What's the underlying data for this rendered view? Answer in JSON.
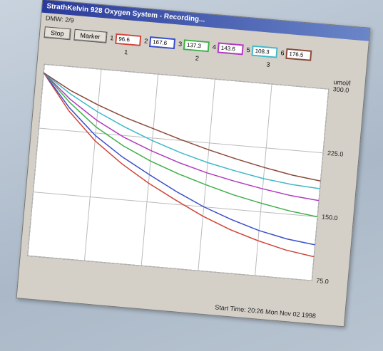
{
  "window": {
    "title": "StrathKelvin 928 Oxygen System - Recording...",
    "status": "DMW: 2/9",
    "buttons": [
      "Stop",
      "Marker"
    ],
    "markers": [
      "1",
      "2",
      "3"
    ],
    "start_time": "Start Time:  20:26 Mon Nov 02 1998"
  },
  "chart_data": {
    "type": "line",
    "y_label": "umol/l",
    "x": [
      0,
      1,
      2,
      3,
      4,
      5,
      6,
      7,
      8,
      9,
      10
    ],
    "xlim": [
      0,
      10
    ],
    "xticks": [
      0,
      2,
      4,
      6,
      8,
      10
    ],
    "ylim": [
      75,
      300
    ],
    "yticks": [
      {
        "value": 300,
        "label": "300.0"
      },
      {
        "value": 225,
        "label": "225.0"
      },
      {
        "value": 150,
        "label": "150.0"
      },
      {
        "value": 75,
        "label": "75.0"
      }
    ],
    "grid": true,
    "series": [
      {
        "name": "1",
        "readout": "96.6",
        "color": "#d0463a",
        "values": [
          290,
          248,
          216,
          192,
          172,
          155,
          139,
          126,
          116,
          108,
          103
        ]
      },
      {
        "name": "2",
        "readout": "167.6",
        "color": "#3a4fc8",
        "values": [
          290,
          252,
          222,
          200,
          182,
          165,
          150,
          138,
          128,
          121,
          117
        ]
      },
      {
        "name": "3",
        "readout": "137.3",
        "color": "#3fb04a",
        "values": [
          290,
          258,
          232,
          213,
          198,
          186,
          176,
          167,
          160,
          154,
          150
        ]
      },
      {
        "name": "4",
        "readout": "143.6",
        "color": "#b03cc0",
        "values": [
          290,
          262,
          240,
          223,
          210,
          199,
          190,
          183,
          177,
          172,
          169
        ]
      },
      {
        "name": "5",
        "readout": "108.3",
        "color": "#40b8c8",
        "values": [
          290,
          268,
          250,
          235,
          222,
          211,
          202,
          195,
          189,
          185,
          183
        ]
      },
      {
        "name": "6",
        "readout": "176.5",
        "color": "#8a4a3a",
        "values": [
          290,
          272,
          258,
          246,
          236,
          226,
          217,
          209,
          202,
          196,
          192
        ]
      }
    ]
  }
}
